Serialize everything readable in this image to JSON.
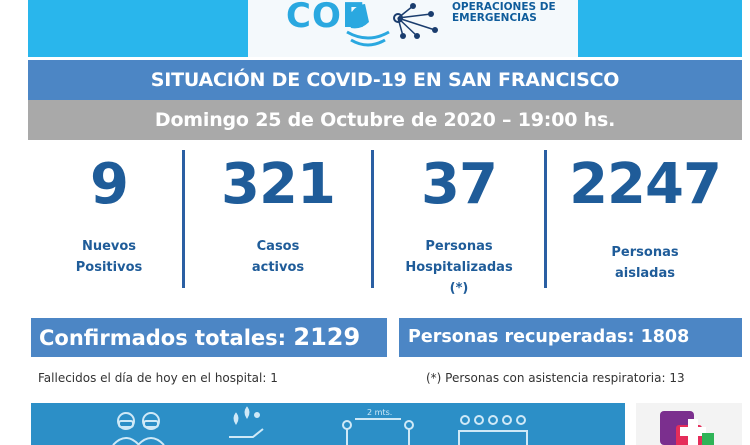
{
  "header": {
    "logo_text": "COE",
    "org_line1": "OPERACIONES DE",
    "org_line2": "EMERGENCIAS"
  },
  "title": "SITUACIÓN DE COVID-19 EN SAN FRANCISCO",
  "date": "Domingo 25 de Octubre de 2020 – 19:00 hs.",
  "stats": [
    {
      "value": "9",
      "label1": "Nuevos",
      "label2": "Positivos",
      "label3": ""
    },
    {
      "value": "321",
      "label1": "Casos",
      "label2": "activos",
      "label3": ""
    },
    {
      "value": "37",
      "label1": "Personas",
      "label2": "Hospitalizadas",
      "label3": "(*)"
    },
    {
      "value": "2247",
      "label1": "Personas",
      "label2": "aisladas",
      "label3": ""
    }
  ],
  "totals": {
    "confirmed_label": "Confirmados totales:",
    "confirmed_value": "2129",
    "recovered_label": "Personas recuperadas:",
    "recovered_value": "1808"
  },
  "footnotes": {
    "deaths": "Fallecidos el día de hoy en el hospital: 1",
    "respiratory": "(*) Personas con asistencia respiratoria: 13"
  },
  "banner": {
    "distance_label": "2 mts."
  },
  "colors": {
    "header_bg": "#29b6ec",
    "title_bg": "#4c86c5",
    "date_bg": "#a9a9a9",
    "stat_text": "#1f5c99",
    "banner_bg": "#2c8fc7"
  }
}
